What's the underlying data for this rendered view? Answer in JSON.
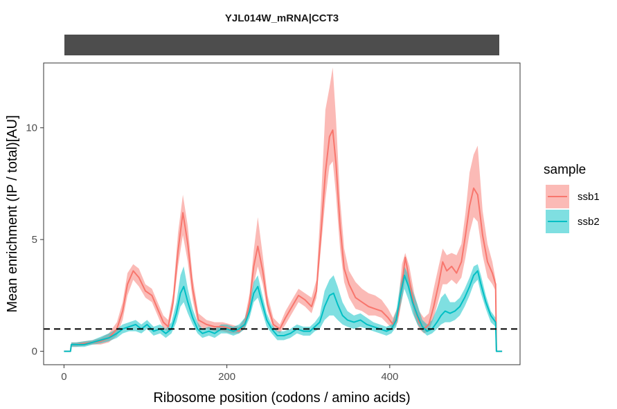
{
  "chart_data": {
    "type": "line",
    "facet_title": "YJL014W_mRNA|CCT3",
    "xlabel": "Ribosome position (codons / amino acids)",
    "ylabel": "Mean enrichment (IP / total)[AU]",
    "xlim": [
      -25,
      560
    ],
    "ylim": [
      -0.6,
      12.9
    ],
    "x_ticks": [
      0,
      200,
      400
    ],
    "y_ticks": [
      0,
      5,
      10
    ],
    "reference_line": {
      "y": 1,
      "style": "dashed"
    },
    "grid": false,
    "legend": {
      "title": "sample",
      "position": "right"
    },
    "series": [
      {
        "name": "ssb1",
        "color": "#F8766D",
        "ribbon_color": "#F8766D",
        "points": [
          [
            0,
            0,
            0,
            0
          ],
          [
            8,
            0,
            0,
            0
          ],
          [
            9,
            0.3,
            0.2,
            0.4
          ],
          [
            15,
            0.3,
            0.2,
            0.4
          ],
          [
            25,
            0.35,
            0.25,
            0.45
          ],
          [
            35,
            0.4,
            0.3,
            0.5
          ],
          [
            45,
            0.45,
            0.3,
            0.6
          ],
          [
            55,
            0.6,
            0.4,
            0.8
          ],
          [
            65,
            1.0,
            0.7,
            1.3
          ],
          [
            72,
            1.8,
            1.4,
            2.2
          ],
          [
            78,
            3.0,
            2.5,
            3.5
          ],
          [
            85,
            3.6,
            3.2,
            3.9
          ],
          [
            92,
            3.3,
            2.9,
            3.7
          ],
          [
            100,
            2.7,
            2.4,
            3.0
          ],
          [
            108,
            2.5,
            2.2,
            2.8
          ],
          [
            115,
            1.9,
            1.6,
            2.2
          ],
          [
            122,
            1.3,
            1.0,
            1.6
          ],
          [
            128,
            1.1,
            0.9,
            1.4
          ],
          [
            134,
            2.2,
            1.9,
            2.6
          ],
          [
            140,
            4.5,
            3.8,
            5.3
          ],
          [
            146,
            6.2,
            5.2,
            7.0
          ],
          [
            152,
            4.8,
            4.0,
            5.6
          ],
          [
            158,
            2.8,
            2.3,
            3.3
          ],
          [
            165,
            1.4,
            1.1,
            1.7
          ],
          [
            175,
            1.2,
            1.0,
            1.4
          ],
          [
            185,
            1.1,
            0.9,
            1.3
          ],
          [
            195,
            1.1,
            0.9,
            1.3
          ],
          [
            205,
            1.0,
            0.8,
            1.2
          ],
          [
            215,
            0.9,
            0.8,
            1.1
          ],
          [
            222,
            1.2,
            1.0,
            1.5
          ],
          [
            228,
            2.2,
            1.8,
            2.6
          ],
          [
            233,
            3.8,
            3.0,
            4.5
          ],
          [
            238,
            4.7,
            3.8,
            6.0
          ],
          [
            244,
            3.6,
            3.0,
            4.3
          ],
          [
            250,
            2.1,
            1.8,
            2.5
          ],
          [
            257,
            1.2,
            1.0,
            1.5
          ],
          [
            265,
            1.0,
            0.8,
            1.2
          ],
          [
            272,
            1.5,
            1.2,
            1.8
          ],
          [
            280,
            2.0,
            1.7,
            2.3
          ],
          [
            288,
            2.5,
            2.2,
            2.8
          ],
          [
            296,
            2.3,
            2.0,
            2.6
          ],
          [
            304,
            2.0,
            1.7,
            2.4
          ],
          [
            310,
            2.7,
            2.4,
            3.2
          ],
          [
            316,
            5.5,
            4.8,
            7.0
          ],
          [
            321,
            8.0,
            6.8,
            10.8
          ],
          [
            326,
            9.6,
            8.3,
            11.8
          ],
          [
            330,
            9.9,
            8.5,
            12.7
          ],
          [
            334,
            8.4,
            7.0,
            10.4
          ],
          [
            339,
            5.6,
            4.6,
            6.8
          ],
          [
            344,
            3.7,
            3.1,
            4.6
          ],
          [
            350,
            3.0,
            2.4,
            3.6
          ],
          [
            358,
            2.4,
            1.9,
            3.1
          ],
          [
            366,
            2.2,
            1.8,
            2.8
          ],
          [
            374,
            2.0,
            1.6,
            2.6
          ],
          [
            382,
            1.9,
            1.6,
            2.5
          ],
          [
            390,
            1.8,
            1.5,
            2.3
          ],
          [
            398,
            1.5,
            1.2,
            1.9
          ],
          [
            404,
            1.2,
            1.0,
            1.5
          ],
          [
            410,
            1.6,
            1.3,
            2.0
          ],
          [
            415,
            3.0,
            2.3,
            3.9
          ],
          [
            419,
            4.2,
            3.3,
            4.4
          ],
          [
            424,
            3.2,
            2.6,
            3.8
          ],
          [
            430,
            2.0,
            1.6,
            2.6
          ],
          [
            436,
            1.3,
            1.0,
            1.8
          ],
          [
            442,
            1.0,
            0.8,
            1.5
          ],
          [
            448,
            1.2,
            0.9,
            1.7
          ],
          [
            454,
            2.0,
            1.5,
            2.8
          ],
          [
            460,
            3.0,
            2.3,
            3.8
          ],
          [
            465,
            4.0,
            3.0,
            4.6
          ],
          [
            470,
            3.6,
            3.0,
            4.3
          ],
          [
            476,
            3.8,
            3.2,
            4.4
          ],
          [
            482,
            3.5,
            3.0,
            4.3
          ],
          [
            488,
            4.0,
            3.3,
            4.8
          ],
          [
            493,
            5.2,
            4.2,
            6.2
          ],
          [
            498,
            6.5,
            5.3,
            8.0
          ],
          [
            503,
            7.3,
            6.0,
            8.8
          ],
          [
            508,
            7.0,
            5.8,
            9.2
          ],
          [
            514,
            5.2,
            4.3,
            6.3
          ],
          [
            520,
            4.0,
            3.3,
            4.8
          ],
          [
            526,
            3.5,
            3.0,
            4.0
          ],
          [
            530,
            3.0,
            2.7,
            3.2
          ],
          [
            531,
            0,
            0,
            0
          ],
          [
            538,
            0,
            0,
            0
          ]
        ]
      },
      {
        "name": "ssb2",
        "color": "#00BFC4",
        "ribbon_color": "#00BFC4",
        "points": [
          [
            0,
            0,
            0,
            0
          ],
          [
            8,
            0,
            0,
            0
          ],
          [
            9,
            0.3,
            0.2,
            0.4
          ],
          [
            15,
            0.3,
            0.2,
            0.4
          ],
          [
            25,
            0.3,
            0.2,
            0.45
          ],
          [
            35,
            0.4,
            0.3,
            0.5
          ],
          [
            45,
            0.5,
            0.35,
            0.65
          ],
          [
            55,
            0.6,
            0.45,
            0.8
          ],
          [
            65,
            0.8,
            0.6,
            1.0
          ],
          [
            72,
            1.0,
            0.8,
            1.2
          ],
          [
            80,
            1.1,
            0.9,
            1.3
          ],
          [
            88,
            1.2,
            0.9,
            1.4
          ],
          [
            95,
            1.0,
            0.8,
            1.2
          ],
          [
            102,
            1.2,
            1.0,
            1.4
          ],
          [
            110,
            0.9,
            0.7,
            1.1
          ],
          [
            118,
            1.0,
            0.8,
            1.2
          ],
          [
            125,
            0.8,
            0.6,
            1.0
          ],
          [
            132,
            1.0,
            0.8,
            1.3
          ],
          [
            138,
            1.7,
            1.3,
            2.2
          ],
          [
            143,
            2.6,
            2.0,
            3.4
          ],
          [
            147,
            2.9,
            2.2,
            3.8
          ],
          [
            152,
            2.2,
            1.7,
            2.8
          ],
          [
            158,
            1.5,
            1.2,
            1.9
          ],
          [
            164,
            1.0,
            0.8,
            1.3
          ],
          [
            170,
            0.8,
            0.6,
            1.0
          ],
          [
            178,
            0.9,
            0.7,
            1.1
          ],
          [
            185,
            0.8,
            0.6,
            1.0
          ],
          [
            193,
            1.0,
            0.8,
            1.2
          ],
          [
            200,
            1.0,
            0.8,
            1.2
          ],
          [
            208,
            0.9,
            0.7,
            1.1
          ],
          [
            215,
            1.0,
            0.8,
            1.2
          ],
          [
            222,
            1.2,
            1.0,
            1.5
          ],
          [
            228,
            1.8,
            1.5,
            2.2
          ],
          [
            233,
            2.6,
            2.2,
            3.1
          ],
          [
            238,
            2.9,
            2.4,
            3.4
          ],
          [
            243,
            2.2,
            1.8,
            2.6
          ],
          [
            249,
            1.4,
            1.1,
            1.7
          ],
          [
            255,
            1.0,
            0.8,
            1.2
          ],
          [
            262,
            0.7,
            0.5,
            0.9
          ],
          [
            270,
            0.7,
            0.5,
            0.9
          ],
          [
            278,
            0.8,
            0.6,
            1.0
          ],
          [
            286,
            1.0,
            0.8,
            1.2
          ],
          [
            294,
            0.9,
            0.7,
            1.1
          ],
          [
            302,
            0.9,
            0.7,
            1.1
          ],
          [
            308,
            1.1,
            0.9,
            1.3
          ],
          [
            314,
            1.3,
            1.0,
            1.6
          ],
          [
            320,
            2.0,
            1.4,
            2.7
          ],
          [
            326,
            2.5,
            1.6,
            3.2
          ],
          [
            331,
            2.6,
            1.6,
            3.4
          ],
          [
            336,
            2.1,
            1.4,
            2.9
          ],
          [
            342,
            1.6,
            1.2,
            2.2
          ],
          [
            348,
            1.4,
            1.1,
            1.8
          ],
          [
            356,
            1.3,
            1.0,
            1.6
          ],
          [
            364,
            1.4,
            1.1,
            1.7
          ],
          [
            372,
            1.2,
            1.0,
            1.5
          ],
          [
            380,
            1.1,
            0.9,
            1.3
          ],
          [
            388,
            1.0,
            0.8,
            1.2
          ],
          [
            396,
            0.9,
            0.7,
            1.1
          ],
          [
            402,
            1.0,
            0.8,
            1.2
          ],
          [
            408,
            1.4,
            1.1,
            1.8
          ],
          [
            413,
            2.5,
            2.0,
            3.0
          ],
          [
            418,
            3.4,
            2.8,
            3.8
          ],
          [
            423,
            2.9,
            2.3,
            3.4
          ],
          [
            428,
            2.2,
            1.7,
            2.7
          ],
          [
            434,
            1.6,
            1.2,
            2.1
          ],
          [
            440,
            1.1,
            0.9,
            1.4
          ],
          [
            446,
            0.9,
            0.7,
            1.2
          ],
          [
            452,
            1.0,
            0.8,
            1.4
          ],
          [
            458,
            1.3,
            1.0,
            1.9
          ],
          [
            463,
            1.6,
            1.2,
            2.4
          ],
          [
            468,
            1.8,
            1.3,
            2.6
          ],
          [
            474,
            1.7,
            1.3,
            2.2
          ],
          [
            480,
            1.8,
            1.4,
            2.2
          ],
          [
            486,
            2.0,
            1.6,
            2.4
          ],
          [
            492,
            2.4,
            2.0,
            2.8
          ],
          [
            498,
            2.9,
            2.5,
            3.3
          ],
          [
            503,
            3.4,
            3.0,
            3.8
          ],
          [
            508,
            3.6,
            3.2,
            3.9
          ],
          [
            512,
            3.0,
            2.6,
            3.4
          ],
          [
            518,
            2.2,
            1.9,
            2.5
          ],
          [
            524,
            1.6,
            1.3,
            1.8
          ],
          [
            530,
            1.3,
            1.1,
            1.5
          ],
          [
            531,
            0,
            0,
            0
          ],
          [
            538,
            0,
            0,
            0
          ]
        ]
      }
    ]
  }
}
